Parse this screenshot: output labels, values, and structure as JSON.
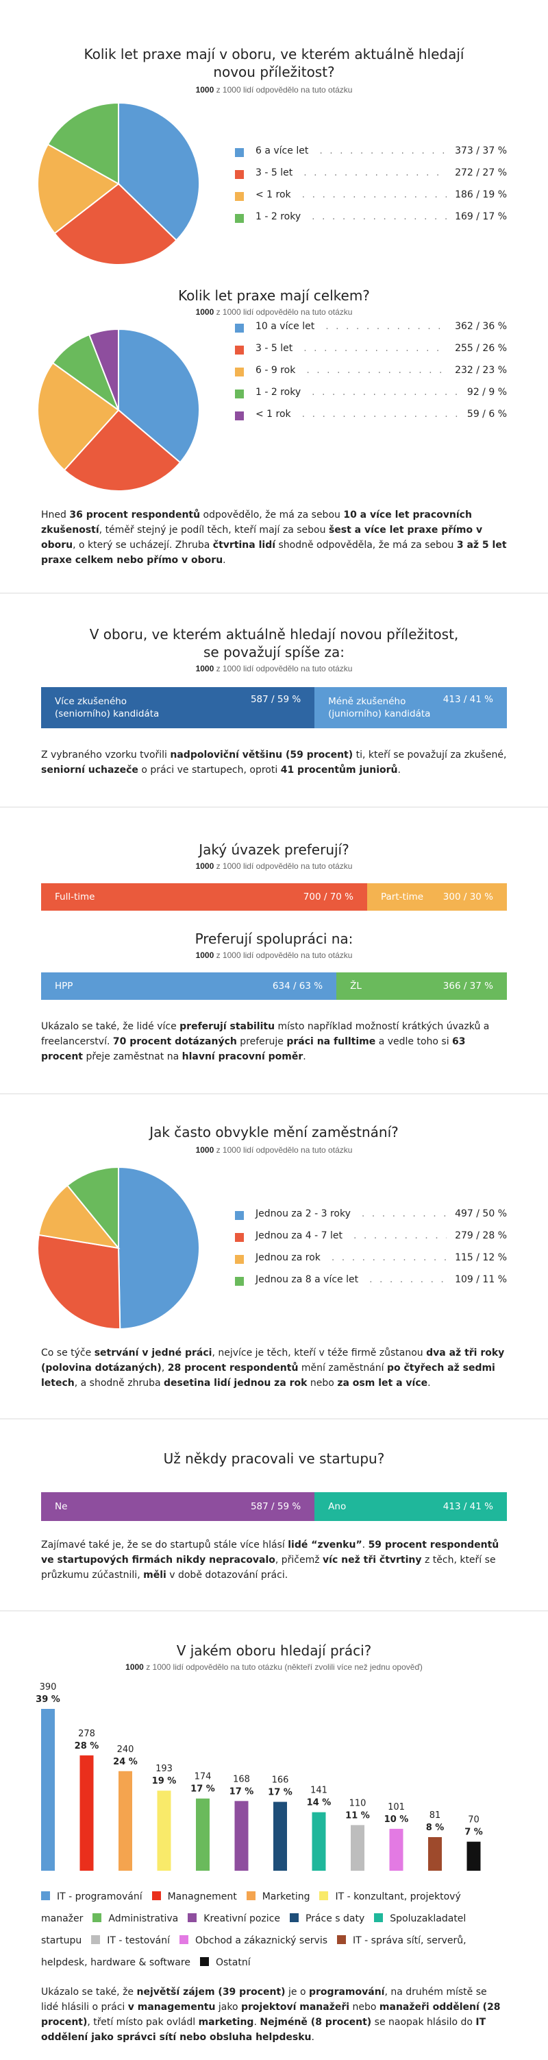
{
  "colors": {
    "blue": "#5b9bd5",
    "red": "#ea5a3c",
    "orange": "#f4b350",
    "green": "#6aba5c",
    "purple": "#8e4e9e",
    "teal": "#1fb79b",
    "darkblue": "#2e66a3",
    "yellow": "#f9ea6a",
    "navy": "#1e4e79",
    "grey": "#bdbdbd",
    "pink": "#e37ae3",
    "brown": "#9e4a2c",
    "black": "#111111"
  },
  "respondents_note": {
    "count": "1000",
    "rest": " z 1000 lidí odpovědělo na tuto otázku"
  },
  "sections": {
    "s1": {
      "title_lines": [
        "Kolik let praxe mají v oboru, ve kterém aktuálně hledají",
        "novou příležitost?"
      ],
      "legend": [
        {
          "label": "6 a více let",
          "value": "373 / 37 %"
        },
        {
          "label": "3 - 5 let",
          "value": "272 / 27 %"
        },
        {
          "label": "< 1 rok",
          "value": "186 / 19 %"
        },
        {
          "label": "1 - 2 roky",
          "value": "169 / 17 %"
        }
      ]
    },
    "s2": {
      "title": "Kolik let praxe mají celkem?",
      "legend": [
        {
          "label": "10 a více let",
          "value": "362 / 36 %"
        },
        {
          "label": "3 - 5 let",
          "value": "255 / 26 %"
        },
        {
          "label": "6 - 9 rok",
          "value": "232 / 23 %"
        },
        {
          "label": "1 - 2 roky",
          "value": "92 / 9 %"
        },
        {
          "label": "< 1 rok",
          "value": "59 / 6 %"
        }
      ],
      "paragraph": [
        {
          "t": "Hned "
        },
        {
          "t": "36 procent respondentů",
          "b": 1
        },
        {
          "t": " odpovědělo, že má za sebou "
        },
        {
          "t": "10 a více let pracovních zkušeností",
          "b": 1
        },
        {
          "t": ", téměř stejný je podíl těch, kteří mají za sebou "
        },
        {
          "t": "šest a více let praxe přímo v oboru",
          "b": 1
        },
        {
          "t": ", o který se ucházejí. Zhruba "
        },
        {
          "t": "čtvrtina lidí",
          "b": 1
        },
        {
          "t": " shodně odpověděla, že má za sebou "
        },
        {
          "t": "3 až 5 let praxe celkem nebo přímo v oboru",
          "b": 1
        },
        {
          "t": "."
        }
      ]
    },
    "s3": {
      "title_lines": [
        "V oboru, ve kterém aktuálně hledají novou příležitost,",
        "se považují spíše za:"
      ],
      "bar": [
        {
          "label": "Více zkušeného (seniorního) kandidáta",
          "value": "587 / 59 %",
          "label_lines": [
            "Více zkušeného",
            "(seniorního) kandidáta"
          ]
        },
        {
          "label": "Méně zkušeného (juniorního) kandidáta",
          "value": "413 / 41 %",
          "label_lines": [
            "Méně zkušeného",
            "(juniorního) kandidáta"
          ]
        }
      ],
      "paragraph": [
        {
          "t": "Z vybraného vzorku tvořili "
        },
        {
          "t": "nadpoloviční většinu (59 procent)",
          "b": 1
        },
        {
          "t": " ti, kteří se považují za zkušené, "
        },
        {
          "t": "seniorní uchazeče",
          "b": 1
        },
        {
          "t": " o práci ve startupech, oproti "
        },
        {
          "t": "41 procentům juniorů",
          "b": 1
        },
        {
          "t": "."
        }
      ]
    },
    "s4": {
      "title": "Jaký úvazek preferují?",
      "bar": [
        {
          "label": "Full-time",
          "value": "700 / 70 %"
        },
        {
          "label": "Part-time",
          "value": "300 / 30 %"
        }
      ]
    },
    "s5": {
      "title": "Preferují spolupráci na:",
      "bar": [
        {
          "label": "HPP",
          "value": "634 / 63 %"
        },
        {
          "label": "ŽL",
          "value": "366 / 37 %"
        }
      ],
      "paragraph": [
        {
          "t": "Ukázalo se také, že lidé více "
        },
        {
          "t": "preferují stabilitu",
          "b": 1
        },
        {
          "t": " místo například možností krátkých úvazků a freelancerství. "
        },
        {
          "t": "70 procent dotázaných",
          "b": 1
        },
        {
          "t": " preferuje "
        },
        {
          "t": "práci na fulltime",
          "b": 1
        },
        {
          "t": " a vedle toho si "
        },
        {
          "t": "63 procent",
          "b": 1
        },
        {
          "t": " přeje zaměstnat na "
        },
        {
          "t": "hlavní pracovní poměr",
          "b": 1
        },
        {
          "t": "."
        }
      ]
    },
    "s6": {
      "title": "Jak často obvykle mění zaměstnání?",
      "legend": [
        {
          "label": "Jednou za 2 - 3 roky",
          "value": "497 / 50 %"
        },
        {
          "label": "Jednou za 4 - 7 let",
          "value": "279 / 28 %"
        },
        {
          "label": "Jednou za rok",
          "value": "115 / 12 %"
        },
        {
          "label": "Jednou za 8 a více let",
          "value": "109 / 11 %"
        }
      ],
      "paragraph": [
        {
          "t": "Co se týče "
        },
        {
          "t": "setrvání v jedné práci",
          "b": 1
        },
        {
          "t": ", nejvíce je těch, kteří v téže firmě zůstanou "
        },
        {
          "t": "dva až tři roky (polovina dotázaných)",
          "b": 1
        },
        {
          "t": ", "
        },
        {
          "t": "28 procent respondentů",
          "b": 1
        },
        {
          "t": " mění zaměstnání "
        },
        {
          "t": "po čtyřech až sedmi letech",
          "b": 1
        },
        {
          "t": ", a shodně zhruba "
        },
        {
          "t": "desetina lidí jednou za rok",
          "b": 1
        },
        {
          "t": " nebo "
        },
        {
          "t": "za osm let a více",
          "b": 1
        },
        {
          "t": "."
        }
      ]
    },
    "s7": {
      "title": "Už někdy pracovali ve startupu?",
      "bar": [
        {
          "label": "Ne",
          "value": "587 / 59 %"
        },
        {
          "label": "Ano",
          "value": "413 / 41 %"
        }
      ],
      "paragraph": [
        {
          "t": "Zajímavé také je, že se do startupů stále více hlásí "
        },
        {
          "t": "lidé “zvenku”",
          "b": 1
        },
        {
          "t": ". "
        },
        {
          "t": "59 procent respondentů ve startupových firmách nikdy nepracovalo",
          "b": 1
        },
        {
          "t": ", přičemž "
        },
        {
          "t": "víc než tři čtvrtiny",
          "b": 1
        },
        {
          "t": " z těch, kteří se průzkumu zúčastnili, "
        },
        {
          "t": "měli",
          "b": 1
        },
        {
          "t": " v době dotazování práci."
        }
      ]
    },
    "s8": {
      "title": "V jakém oboru hledají práci?",
      "subnote": " z 1000 lidí odpovědělo na tuto otázku (někteří zvolili více než jednu opověď)",
      "paragraph": [
        {
          "t": "Ukázalo se také, že "
        },
        {
          "t": "největší zájem (39 procent)",
          "b": 1
        },
        {
          "t": " je o "
        },
        {
          "t": "programování",
          "b": 1
        },
        {
          "t": ", na druhém místě se lidé hlásili o práci "
        },
        {
          "t": "v managementu",
          "b": 1
        },
        {
          "t": " jako "
        },
        {
          "t": "projektoví manažeři",
          "b": 1
        },
        {
          "t": " nebo "
        },
        {
          "t": "manažeři oddělení (28 procent)",
          "b": 1
        },
        {
          "t": ", třetí místo pak ovládl "
        },
        {
          "t": "marketing",
          "b": 1
        },
        {
          "t": ". "
        },
        {
          "t": "Nejméně (8 procent)",
          "b": 1
        },
        {
          "t": " se naopak hlásilo do "
        },
        {
          "t": "IT oddělení jako správci sítí nebo obsluha helpdesku",
          "b": 1
        },
        {
          "t": "."
        }
      ],
      "legend_lines": [
        [
          "IT - programování",
          "Managnement",
          "Marketing",
          "IT - konzultant, projektový"
        ],
        [
          "manažer",
          "Administrativa",
          "Kreativní pozice",
          "Práce s daty",
          "Spoluzakladatel"
        ],
        [
          "startupu",
          "IT - testování",
          "Obchod a zákaznický servis",
          "IT - správa sítí, serverů,"
        ],
        [
          "helpdesk, hardware & software",
          "Ostatní"
        ]
      ]
    }
  },
  "chart_data": [
    {
      "type": "pie",
      "title": "Kolik let praxe mají v oboru, ve kterém aktuálně hledají novou příležitost?",
      "categories": [
        "6 a více let",
        "3 - 5 let",
        "< 1 rok",
        "1 - 2 roky"
      ],
      "values": [
        373,
        272,
        186,
        169
      ],
      "percent": [
        37,
        27,
        19,
        17
      ],
      "colors": [
        "#5b9bd5",
        "#ea5a3c",
        "#f4b350",
        "#6aba5c"
      ]
    },
    {
      "type": "pie",
      "title": "Kolik let praxe mají celkem?",
      "categories": [
        "10 a více let",
        "3 - 5 let",
        "6 - 9 rok",
        "1 - 2 roky",
        "< 1 rok"
      ],
      "values": [
        362,
        255,
        232,
        92,
        59
      ],
      "percent": [
        36,
        26,
        23,
        9,
        6
      ],
      "colors": [
        "#5b9bd5",
        "#ea5a3c",
        "#f4b350",
        "#6aba5c",
        "#8e4e9e"
      ]
    },
    {
      "type": "bar",
      "title": "V oboru, ve kterém aktuálně hledají novou příležitost, se považují spíše za:",
      "categories": [
        "Více zkušeného (seniorního) kandidáta",
        "Méně zkušeného (juniorního) kandidáta"
      ],
      "values": [
        587,
        413
      ],
      "percent": [
        59,
        41
      ],
      "colors": [
        "#2e66a3",
        "#5b9bd5"
      ]
    },
    {
      "type": "bar",
      "title": "Jaký úvazek preferují?",
      "categories": [
        "Full-time",
        "Part-time"
      ],
      "values": [
        700,
        300
      ],
      "percent": [
        70,
        30
      ],
      "colors": [
        "#ea5a3c",
        "#f4b350"
      ]
    },
    {
      "type": "bar",
      "title": "Preferují spolupráci na:",
      "categories": [
        "HPP",
        "ŽL"
      ],
      "values": [
        634,
        366
      ],
      "percent": [
        63,
        37
      ],
      "colors": [
        "#5b9bd5",
        "#6aba5c"
      ]
    },
    {
      "type": "pie",
      "title": "Jak často obvykle mění zaměstnání?",
      "categories": [
        "Jednou za 2 - 3 roky",
        "Jednou za 4 - 7 let",
        "Jednou za rok",
        "Jednou za 8 a více let"
      ],
      "values": [
        497,
        279,
        115,
        109
      ],
      "percent": [
        50,
        28,
        12,
        11
      ],
      "colors": [
        "#5b9bd5",
        "#ea5a3c",
        "#f4b350",
        "#6aba5c"
      ]
    },
    {
      "type": "bar",
      "title": "Už někdy pracovali ve startupu?",
      "categories": [
        "Ne",
        "Ano"
      ],
      "values": [
        587,
        413
      ],
      "percent": [
        59,
        41
      ],
      "colors": [
        "#8e4e9e",
        "#1fb79b"
      ]
    },
    {
      "type": "bar",
      "title": "V jakém oboru hledají práci?",
      "categories": [
        "IT - programování",
        "Managnement",
        "Marketing",
        "IT - konzultant, projektový manažer",
        "Administrativa",
        "Kreativní pozice",
        "Práce s daty",
        "Spoluzakladatel startupu",
        "IT - testování",
        "Obchod a zákaznický servis",
        "IT - správa sítí, serverů, helpdesk, hardware & software",
        "Ostatní"
      ],
      "values": [
        390,
        278,
        240,
        193,
        174,
        168,
        166,
        141,
        110,
        101,
        81,
        70
      ],
      "percent_labels": [
        "39 %",
        "28 %",
        "24 %",
        "19 %",
        "17 %",
        "17 %",
        "17 %",
        "14 %",
        "11 %",
        "10 %",
        "8 %",
        "7 %"
      ],
      "colors": [
        "#5b9bd5",
        "#ea2f1c",
        "#f4a44f",
        "#f9ea6a",
        "#6aba5c",
        "#8e4e9e",
        "#1e4e79",
        "#1fb79b",
        "#bdbdbd",
        "#e37ae3",
        "#9e4a2c",
        "#111111"
      ],
      "ylim": [
        0,
        390
      ]
    }
  ]
}
